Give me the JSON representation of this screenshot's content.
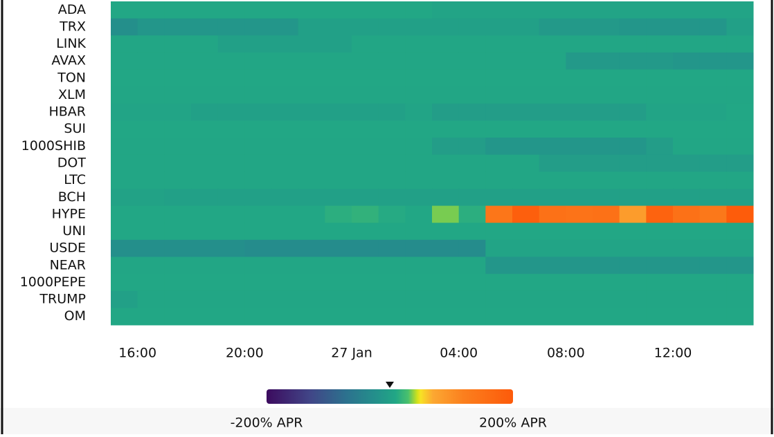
{
  "chart_data": {
    "type": "heatmap",
    "rows": [
      "ADA",
      "TRX",
      "LINK",
      "AVAX",
      "TON",
      "XLM",
      "HBAR",
      "SUI",
      "1000SHIB",
      "DOT",
      "LTC",
      "BCH",
      "HYPE",
      "UNI",
      "USDE",
      "NEAR",
      "1000PEPE",
      "TRUMP",
      "OM"
    ],
    "categories": [
      null,
      "16:00",
      null,
      null,
      null,
      "20:00",
      null,
      null,
      null,
      "27 Jan",
      null,
      null,
      null,
      "04:00",
      null,
      null,
      null,
      "08:00",
      null,
      null,
      null,
      "12:00",
      null,
      null
    ],
    "values": [
      [
        10,
        10,
        10,
        10,
        10,
        10,
        10,
        10,
        10,
        10,
        10,
        10,
        5,
        5,
        5,
        5,
        5,
        5,
        5,
        5,
        5,
        5,
        5,
        5
      ],
      [
        -25,
        -15,
        -15,
        -15,
        -15,
        -15,
        -15,
        0,
        0,
        0,
        0,
        0,
        0,
        0,
        0,
        0,
        -10,
        -10,
        -10,
        -15,
        -15,
        -15,
        -15,
        0
      ],
      [
        8,
        8,
        8,
        8,
        0,
        0,
        0,
        0,
        0,
        8,
        8,
        8,
        8,
        8,
        8,
        8,
        8,
        8,
        8,
        8,
        8,
        8,
        8,
        8
      ],
      [
        8,
        8,
        8,
        8,
        8,
        8,
        8,
        8,
        8,
        8,
        8,
        8,
        8,
        8,
        8,
        8,
        8,
        -10,
        -10,
        -10,
        -10,
        -15,
        -15,
        -15
      ],
      [
        10,
        10,
        10,
        10,
        10,
        10,
        10,
        10,
        10,
        10,
        10,
        10,
        10,
        10,
        10,
        10,
        10,
        10,
        10,
        10,
        10,
        10,
        10,
        10
      ],
      [
        8,
        8,
        8,
        8,
        8,
        8,
        8,
        8,
        8,
        8,
        8,
        8,
        8,
        8,
        8,
        8,
        8,
        8,
        8,
        8,
        8,
        8,
        8,
        8
      ],
      [
        5,
        5,
        5,
        0,
        0,
        0,
        0,
        0,
        0,
        0,
        0,
        5,
        -5,
        -5,
        -5,
        -5,
        -5,
        -5,
        -5,
        -5,
        5,
        5,
        5,
        10
      ],
      [
        10,
        10,
        10,
        10,
        10,
        10,
        10,
        10,
        10,
        10,
        10,
        10,
        10,
        10,
        10,
        10,
        10,
        10,
        10,
        10,
        10,
        10,
        10,
        10
      ],
      [
        8,
        8,
        8,
        8,
        8,
        8,
        8,
        8,
        8,
        8,
        8,
        8,
        -5,
        -5,
        -15,
        -15,
        -15,
        -15,
        -15,
        -15,
        -5,
        8,
        8,
        8
      ],
      [
        8,
        8,
        8,
        8,
        8,
        8,
        8,
        8,
        8,
        8,
        8,
        8,
        8,
        8,
        8,
        8,
        -5,
        -5,
        -5,
        -5,
        -5,
        -5,
        -5,
        -5
      ],
      [
        8,
        8,
        8,
        8,
        8,
        8,
        8,
        8,
        8,
        8,
        8,
        8,
        8,
        8,
        8,
        8,
        8,
        8,
        8,
        8,
        8,
        8,
        8,
        8
      ],
      [
        3,
        3,
        0,
        0,
        0,
        0,
        0,
        0,
        0,
        0,
        0,
        0,
        0,
        0,
        0,
        0,
        0,
        0,
        0,
        0,
        0,
        0,
        0,
        0
      ],
      [
        10,
        10,
        10,
        10,
        10,
        10,
        10,
        10,
        15,
        18,
        12,
        10,
        35,
        15,
        140,
        190,
        150,
        145,
        150,
        85,
        180,
        150,
        135,
        195
      ],
      [
        10,
        10,
        10,
        10,
        10,
        10,
        10,
        10,
        10,
        10,
        10,
        10,
        10,
        10,
        10,
        10,
        10,
        10,
        10,
        10,
        10,
        10,
        10,
        10
      ],
      [
        -25,
        -25,
        -25,
        -25,
        -25,
        -30,
        -30,
        -30,
        -30,
        -30,
        -30,
        -30,
        -30,
        -30,
        5,
        5,
        5,
        5,
        5,
        5,
        5,
        5,
        5,
        5
      ],
      [
        8,
        8,
        8,
        8,
        8,
        8,
        8,
        8,
        8,
        8,
        8,
        8,
        8,
        8,
        -15,
        -15,
        -15,
        -15,
        -15,
        -15,
        -15,
        -15,
        -15,
        -15
      ],
      [
        10,
        10,
        10,
        10,
        10,
        10,
        10,
        10,
        10,
        10,
        10,
        10,
        10,
        10,
        10,
        10,
        10,
        10,
        10,
        10,
        10,
        10,
        10,
        10
      ],
      [
        0,
        8,
        8,
        8,
        8,
        8,
        8,
        8,
        8,
        8,
        8,
        8,
        8,
        8,
        8,
        8,
        8,
        8,
        8,
        8,
        8,
        8,
        8,
        8
      ],
      [
        10,
        10,
        10,
        10,
        10,
        10,
        10,
        10,
        10,
        10,
        10,
        10,
        10,
        10,
        10,
        10,
        10,
        10,
        10,
        10,
        10,
        10,
        10,
        10
      ]
    ],
    "colorscale": [
      [
        -200,
        "#3c0b5e"
      ],
      [
        -130,
        "#414587"
      ],
      [
        -70,
        "#2c728e"
      ],
      [
        -20,
        "#23928b"
      ],
      [
        10,
        "#22a785"
      ],
      [
        30,
        "#4ac16d"
      ],
      [
        45,
        "#d4e21a"
      ],
      [
        50,
        "#f7e225"
      ],
      [
        70,
        "#fca832"
      ],
      [
        120,
        "#fb7f1e"
      ],
      [
        200,
        "#fd5a0a"
      ]
    ],
    "colorbar": {
      "ticks": [
        {
          "value": -200,
          "label": "-200% APR"
        },
        {
          "value": 200,
          "label": "200% APR"
        }
      ],
      "marker": 0
    }
  }
}
